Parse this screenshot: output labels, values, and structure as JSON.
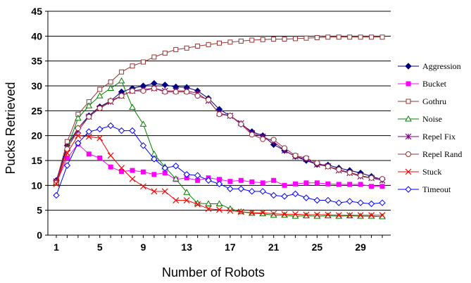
{
  "chart_data": {
    "type": "line",
    "title": "",
    "xlabel": "Number of Robots",
    "ylabel": "Pucks Retrieved",
    "xlim": [
      1,
      31
    ],
    "ylim": [
      0,
      45
    ],
    "x_ticks": [
      "1",
      "5",
      "9",
      "13",
      "17",
      "21",
      "25",
      "29"
    ],
    "y_ticks": [
      "0",
      "5",
      "10",
      "15",
      "20",
      "25",
      "30",
      "35",
      "40",
      "45"
    ],
    "grid": "horizontal",
    "legend_position": "right",
    "x": [
      1,
      2,
      3,
      4,
      5,
      6,
      7,
      8,
      9,
      10,
      11,
      12,
      13,
      14,
      15,
      16,
      17,
      18,
      19,
      20,
      21,
      22,
      23,
      24,
      25,
      26,
      27,
      28,
      29,
      30,
      31
    ],
    "series": [
      {
        "name": "Aggression",
        "color": "#000080",
        "marker": "diamond-filled",
        "values": [
          11,
          18,
          21.5,
          24,
          25.8,
          27,
          28.8,
          29.5,
          30,
          30.5,
          30.2,
          29.8,
          29.7,
          29,
          27.5,
          25.3,
          24,
          22.3,
          20.8,
          20,
          18.2,
          17,
          15.8,
          15,
          14.2,
          14.1,
          13.5,
          13,
          12.5,
          11.8,
          11.2
        ]
      },
      {
        "name": "Bucket",
        "color": "#ff00ff",
        "marker": "square-filled",
        "values": [
          10.5,
          15.5,
          18.3,
          16.3,
          15.5,
          13.7,
          12.8,
          13,
          12.7,
          12.2,
          12.5,
          11.2,
          11.5,
          11,
          11.5,
          11.2,
          10.8,
          11,
          10.7,
          10.5,
          11,
          10,
          10.3,
          10.5,
          10.5,
          10.3,
          10.2,
          10.2,
          10.2,
          9.8,
          9.8
        ]
      },
      {
        "name": "Gothru",
        "color": "#993333",
        "marker": "square-open",
        "values": [
          10.8,
          18.8,
          24.3,
          26.8,
          29.3,
          30.8,
          32.8,
          34,
          34.8,
          35.8,
          36.6,
          37.3,
          37.6,
          38,
          38.3,
          38.6,
          38.8,
          39,
          39.2,
          39.3,
          39.4,
          39.4,
          39.5,
          39.6,
          39.7,
          39.8,
          39.8,
          39.8,
          39.8,
          39.8,
          39.8
        ]
      },
      {
        "name": "Noise",
        "color": "#008000",
        "marker": "triangle-open",
        "values": [
          10.5,
          17.5,
          23.5,
          26,
          28,
          29.5,
          31,
          25.7,
          22.3,
          16.3,
          13.7,
          11.3,
          8.6,
          6.4,
          6.3,
          6.3,
          5.3,
          4.7,
          4.4,
          4.3,
          4,
          4,
          3.8,
          3.9,
          3.8,
          3.9,
          3.8,
          3.9,
          3.8,
          3.8,
          3.7
        ]
      },
      {
        "name": "Repel Fix",
        "color": "#800080",
        "marker": "star",
        "values": [
          10.8,
          17.5,
          21,
          23.8,
          25.5,
          26.8,
          28,
          29,
          29.3,
          29.5,
          29,
          29,
          29,
          28.5,
          27,
          24.5,
          24,
          22.5,
          20.5,
          19.8,
          18.8,
          17,
          15.8,
          15.3,
          14.2,
          13.8,
          13,
          12.5,
          11.8,
          11.5,
          11
        ]
      },
      {
        "name": "Repel Rand",
        "color": "#993333",
        "marker": "circle-open",
        "values": [
          10.5,
          17.3,
          21.5,
          23.8,
          25.5,
          27,
          28,
          29,
          29,
          29.5,
          28.8,
          28.8,
          28.8,
          28,
          27.2,
          24.3,
          24,
          22.3,
          20.2,
          19.3,
          19.2,
          17.5,
          16,
          15.5,
          14.5,
          13.8,
          13.2,
          12.6,
          12,
          11.5,
          11.3
        ]
      },
      {
        "name": "Stuck",
        "color": "#ff0000",
        "marker": "x",
        "values": [
          10.3,
          16.5,
          20,
          19.8,
          19.5,
          16,
          13.5,
          11.3,
          9.8,
          8.8,
          8.8,
          7,
          7,
          6.2,
          5.3,
          5.1,
          4.9,
          4.7,
          4.5,
          4.5,
          4.3,
          4.2,
          4.2,
          4.1,
          4.1,
          4.1,
          4,
          4,
          4,
          4,
          4
        ]
      },
      {
        "name": "Timeout",
        "color": "#0000ff",
        "marker": "diamond-open",
        "values": [
          8,
          14,
          18.5,
          20.8,
          21.3,
          22,
          21,
          21,
          18,
          15.3,
          13.5,
          13.9,
          12.2,
          12,
          11,
          10.3,
          9.3,
          9.3,
          8.8,
          8.8,
          8,
          7.8,
          8.3,
          7.5,
          7,
          7,
          6.5,
          6.8,
          6.5,
          6.3,
          6.5
        ]
      }
    ]
  }
}
